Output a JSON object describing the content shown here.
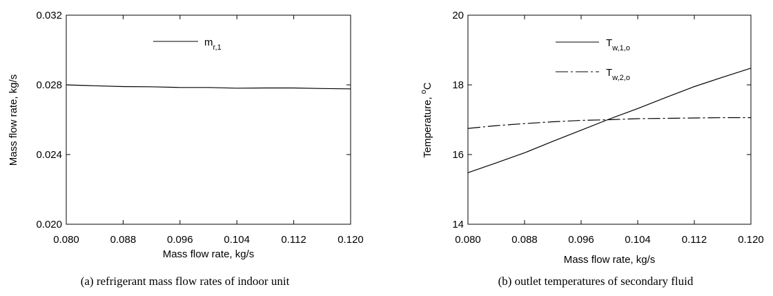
{
  "chart_data": [
    {
      "type": "line",
      "xlabel": "Mass flow rate, kg/s",
      "ylabel": "Mass flow rate,  kg/s",
      "xlim": [
        0.08,
        0.12
      ],
      "ylim": [
        0.02,
        0.032
      ],
      "xticks": [
        "0.080",
        "0.088",
        "0.096",
        "0.104",
        "0.112",
        "0.120"
      ],
      "yticks": [
        "0.020",
        "0.024",
        "0.028",
        "0.032"
      ],
      "caption": "(a) refrigerant mass flow rates of indoor unit",
      "series": [
        {
          "name": "m",
          "name_sub": "r,1",
          "style": "solid",
          "x": [
            0.08,
            0.084,
            0.088,
            0.092,
            0.096,
            0.1,
            0.104,
            0.108,
            0.112,
            0.116,
            0.12
          ],
          "y": [
            0.028,
            0.02795,
            0.0279,
            0.02789,
            0.02785,
            0.02785,
            0.02781,
            0.02782,
            0.02782,
            0.02779,
            0.02777
          ]
        }
      ],
      "legend_position": "top-center",
      "grid": false
    },
    {
      "type": "line",
      "xlabel": "Mass flow rate, kg/s",
      "ylabel": "Temperature, ",
      "ylabel_unit_sup": "o",
      "ylabel_unit": "C",
      "xlim": [
        0.08,
        0.12
      ],
      "ylim": [
        14,
        20
      ],
      "xticks": [
        "0.080",
        "0.088",
        "0.096",
        "0.104",
        "0.112",
        "0.120"
      ],
      "yticks": [
        "14",
        "16",
        "18",
        "20"
      ],
      "caption": "(b) outlet temperatures of secondary fluid",
      "series": [
        {
          "name": "T",
          "name_sub": "w,1,o",
          "style": "solid",
          "x": [
            0.08,
            0.084,
            0.088,
            0.092,
            0.096,
            0.1,
            0.104,
            0.108,
            0.112,
            0.116,
            0.12
          ],
          "y": [
            15.48,
            15.76,
            16.05,
            16.38,
            16.7,
            17.02,
            17.32,
            17.64,
            17.95,
            18.22,
            18.48
          ]
        },
        {
          "name": "T",
          "name_sub": "w,2,o",
          "style": "dashdot",
          "x": [
            0.08,
            0.084,
            0.088,
            0.092,
            0.096,
            0.1,
            0.104,
            0.108,
            0.112,
            0.116,
            0.12
          ],
          "y": [
            16.75,
            16.83,
            16.89,
            16.94,
            16.98,
            17.0,
            17.03,
            17.04,
            17.05,
            17.06,
            17.06
          ]
        }
      ],
      "legend_position": "top-center",
      "grid": false
    }
  ]
}
